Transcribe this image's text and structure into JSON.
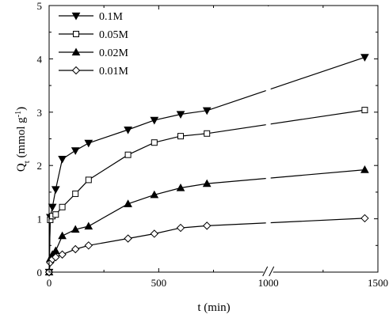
{
  "chart_data": {
    "type": "line",
    "xlabel": "t (min)",
    "ylabel": {
      "main": "Q",
      "sub": "t",
      "unit_pre": " (mmol g",
      "unit_sup": "-1",
      "unit_post": ")"
    },
    "xlim": [
      0,
      1500
    ],
    "ylim": [
      0,
      5
    ],
    "x_ticks": [
      "0",
      "500",
      "1000",
      "1500"
    ],
    "y_ticks": [
      "0",
      "1",
      "2",
      "3",
      "4",
      "5"
    ],
    "axis_break": {
      "at": 1000,
      "between": [
        720,
        1440
      ]
    },
    "legend_position": "top-left",
    "series": [
      {
        "name": "0.1M",
        "marker": "triangle-down-filled",
        "x": [
          0,
          5,
          15,
          30,
          60,
          120,
          180,
          360,
          480,
          600,
          720,
          1440
        ],
        "y": [
          0,
          1.03,
          1.22,
          1.55,
          2.12,
          2.28,
          2.42,
          2.67,
          2.85,
          2.96,
          3.03,
          4.03
        ]
      },
      {
        "name": "0.05M",
        "marker": "square-open",
        "x": [
          0,
          5,
          15,
          30,
          60,
          120,
          180,
          360,
          480,
          600,
          720,
          1440
        ],
        "y": [
          0,
          0.98,
          1.05,
          1.08,
          1.22,
          1.47,
          1.73,
          2.2,
          2.43,
          2.55,
          2.6,
          3.04
        ]
      },
      {
        "name": "0.02M",
        "marker": "triangle-up-filled",
        "x": [
          0,
          5,
          15,
          30,
          60,
          120,
          180,
          360,
          480,
          600,
          720,
          1440
        ],
        "y": [
          0,
          0.25,
          0.33,
          0.4,
          0.68,
          0.8,
          0.86,
          1.28,
          1.45,
          1.58,
          1.66,
          1.92
        ]
      },
      {
        "name": "0.01M",
        "marker": "diamond-open",
        "x": [
          0,
          5,
          15,
          30,
          60,
          120,
          180,
          360,
          480,
          600,
          720,
          1440
        ],
        "y": [
          0,
          0.18,
          0.24,
          0.28,
          0.33,
          0.43,
          0.5,
          0.63,
          0.72,
          0.83,
          0.87,
          1.01
        ]
      }
    ]
  }
}
